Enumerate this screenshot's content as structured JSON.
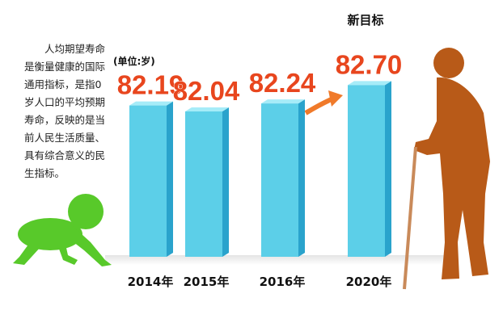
{
  "chart_data": {
    "type": "bar",
    "unit": "(单位:岁)",
    "annotation": "新目标",
    "description": "人均期望寿命是衡量健康的国际通用指标，是指0岁人口的平均预期寿命，反映的是当前人民生活质量、具有综合意义的民生指标。",
    "categories": [
      "2014年",
      "2015年",
      "2016年",
      "2020年"
    ],
    "values": [
      82.19,
      82.04,
      82.24,
      82.7
    ],
    "value_labels": [
      "82.19",
      "82.04",
      "82.24",
      "82.70"
    ],
    "color": "#5ccfe8",
    "ylim": [
      78.4,
      82.9
    ]
  }
}
